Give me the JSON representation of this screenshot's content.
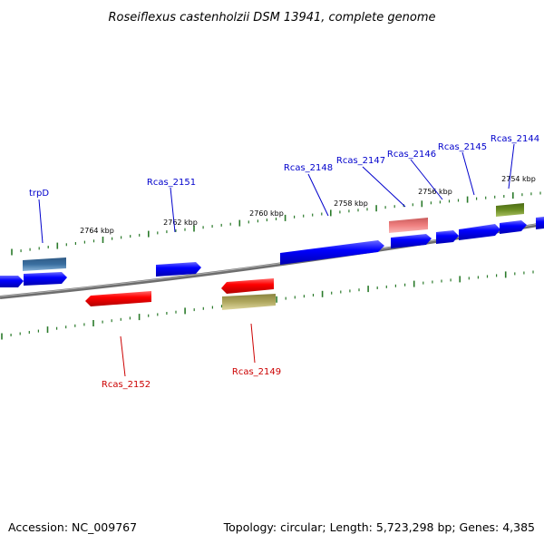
{
  "title": "Roseiflexus castenholzii DSM 13941, complete genome",
  "accession": "Accession: NC_009767",
  "topology": "Topology: circular; Length: 5,723,298 bp; Genes: 4,385",
  "colors": {
    "forward_gene": "#0000ff",
    "reverse_gene": "#ff0000",
    "label_forward": "#0000cc",
    "label_reverse": "#cc0000",
    "tick": "#2a7a2a",
    "backbone": "#808080",
    "trpD": "#3a6fa0",
    "pink_gene": "#f08080",
    "olive_gene": "#6b8e23",
    "khaki_gene": "#b0a860"
  },
  "scale_labels": [
    "2764 kbp",
    "2762 kbp",
    "2760 kbp",
    "2758 kbp",
    "2756 kbp",
    "2754 kbp"
  ],
  "labels_top": [
    "trpD",
    "Rcas_2151",
    "Rcas_2148",
    "Rcas_2147",
    "Rcas_2146",
    "Rcas_2145",
    "Rcas_2144"
  ],
  "labels_bottom": [
    "Rcas_2152",
    "Rcas_2149"
  ]
}
